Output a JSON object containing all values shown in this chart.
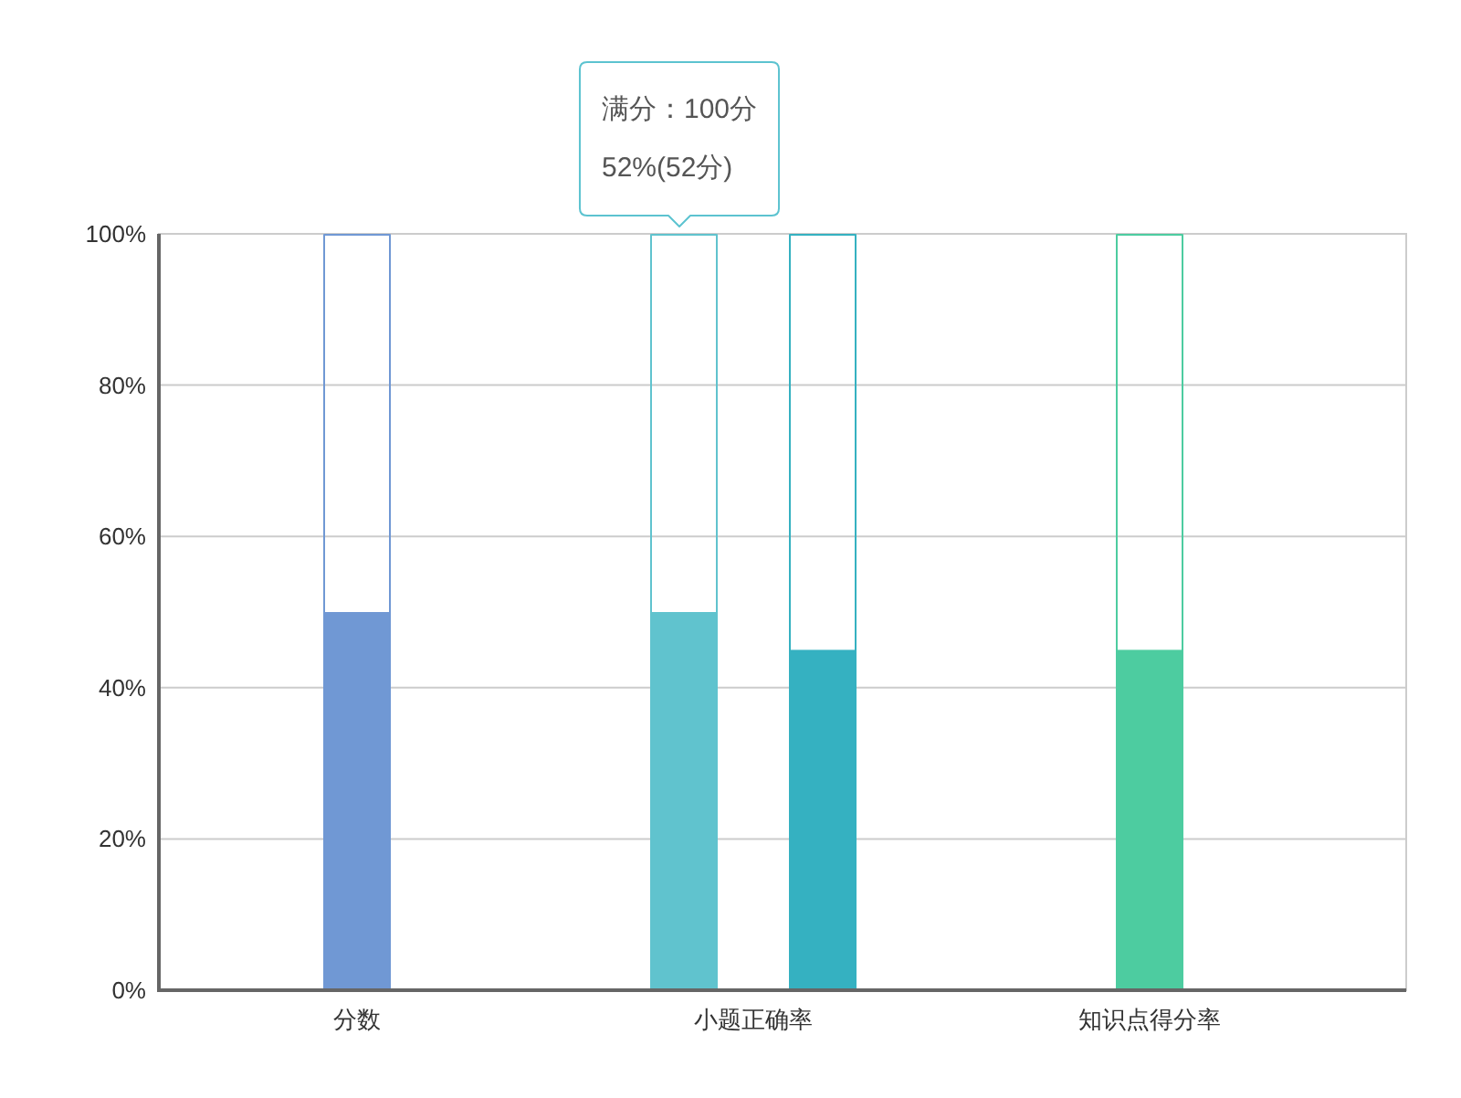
{
  "chart_data": {
    "type": "bar",
    "categories": [
      "分数",
      "小题正确率",
      "知识点得分率"
    ],
    "series": [
      {
        "values": [
          100,
          100,
          100
        ],
        "colors": [
          "#7098d4",
          "#60c3ce",
          "#4dcca0"
        ],
        "line_style": "solid"
      },
      {
        "values": [
          50,
          50,
          45
        ],
        "colors": [
          "#7098d4",
          "#60c3ce",
          "#4dcca0"
        ]
      },
      {
        "values": [
          null,
          100,
          null
        ],
        "color": "#35b1c1",
        "line_style": "solid"
      },
      {
        "values": [
          null,
          45,
          null
        ],
        "color": "#35b1c1"
      }
    ],
    "ylim": [
      0,
      100
    ],
    "yticks": [
      {
        "value": 0,
        "label": "0%"
      },
      {
        "value": 20,
        "label": "20%"
      },
      {
        "value": 40,
        "label": "40%"
      },
      {
        "value": 60,
        "label": "60%"
      },
      {
        "value": 80,
        "label": "80%"
      },
      {
        "value": 100,
        "label": "100%"
      }
    ],
    "grid": "y",
    "annotations": [
      "满分：100分",
      "52%(52分)"
    ]
  }
}
